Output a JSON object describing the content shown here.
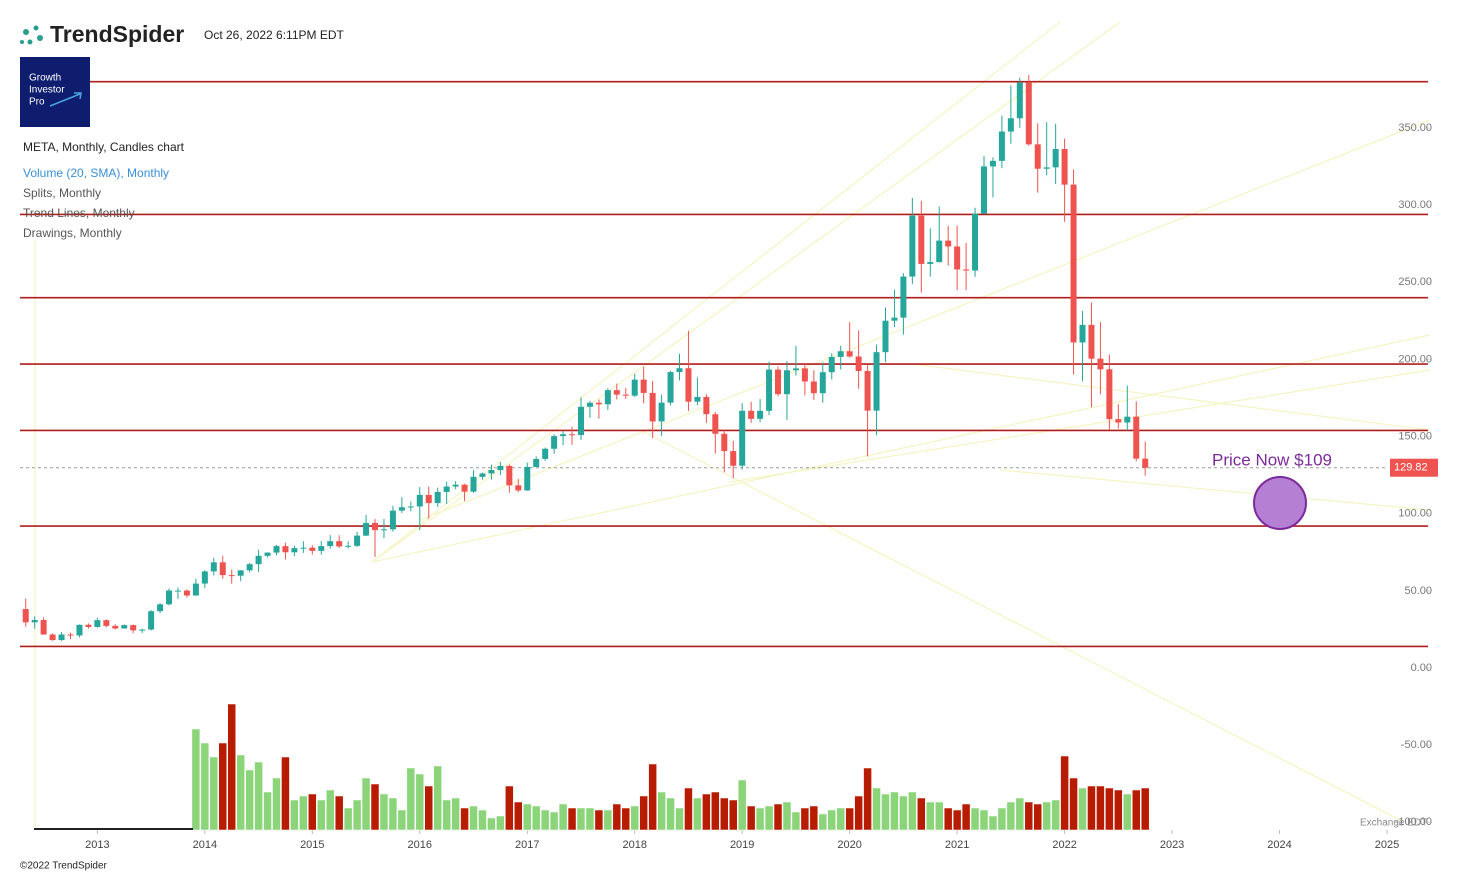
{
  "header": {
    "brand": "TrendSpider",
    "timestamp": "Oct 26, 2022 6:11PM EDT",
    "logo": [
      "Growth",
      "Investor",
      "Pro"
    ]
  },
  "footer": {
    "copyright": "©2022 TrendSpider",
    "exchange": "Exchange EDT"
  },
  "chart_data": {
    "type": "candlestick",
    "title": "META, Monthly, Candles chart",
    "indicators": [
      "Volume (20, SMA), Monthly",
      "Splits, Monthly",
      "Trend Lines, Monthly",
      "Drawings, Monthly"
    ],
    "up_color": "#26a69a",
    "down_color": "#ef5350",
    "volume_up_color": "#8cd47a",
    "volume_down_color": "#b81c00",
    "level_color": "#b01c1c",
    "x": [
      "2012-05",
      "2012-06",
      "2012-07",
      "2012-08",
      "2012-09",
      "2012-10",
      "2012-11",
      "2012-12",
      "2013-01",
      "2013-02",
      "2013-03",
      "2013-04",
      "2013-05",
      "2013-06",
      "2013-07",
      "2013-08",
      "2013-09",
      "2013-10",
      "2013-11",
      "2013-12",
      "2014-01",
      "2014-02",
      "2014-03",
      "2014-04",
      "2014-05",
      "2014-06",
      "2014-07",
      "2014-08",
      "2014-09",
      "2014-10",
      "2014-11",
      "2014-12",
      "2015-01",
      "2015-02",
      "2015-03",
      "2015-04",
      "2015-05",
      "2015-06",
      "2015-07",
      "2015-08",
      "2015-09",
      "2015-10",
      "2015-11",
      "2015-12",
      "2016-01",
      "2016-02",
      "2016-03",
      "2016-04",
      "2016-05",
      "2016-06",
      "2016-07",
      "2016-08",
      "2016-09",
      "2016-10",
      "2016-11",
      "2016-12",
      "2017-01",
      "2017-02",
      "2017-03",
      "2017-04",
      "2017-05",
      "2017-06",
      "2017-07",
      "2017-08",
      "2017-09",
      "2017-10",
      "2017-11",
      "2017-12",
      "2018-01",
      "2018-02",
      "2018-03",
      "2018-04",
      "2018-05",
      "2018-06",
      "2018-07",
      "2018-08",
      "2018-09",
      "2018-10",
      "2018-11",
      "2018-12",
      "2019-01",
      "2019-02",
      "2019-03",
      "2019-04",
      "2019-05",
      "2019-06",
      "2019-07",
      "2019-08",
      "2019-09",
      "2019-10",
      "2019-11",
      "2019-12",
      "2020-01",
      "2020-02",
      "2020-03",
      "2020-04",
      "2020-05",
      "2020-06",
      "2020-07",
      "2020-08",
      "2020-09",
      "2020-10",
      "2020-11",
      "2020-12",
      "2021-01",
      "2021-02",
      "2021-03",
      "2021-04",
      "2021-05",
      "2021-06",
      "2021-07",
      "2021-08",
      "2021-09",
      "2021-10",
      "2021-11",
      "2021-12",
      "2022-01",
      "2022-02",
      "2022-03",
      "2022-04",
      "2022-05",
      "2022-06",
      "2022-07",
      "2022-08",
      "2022-09",
      "2022-10"
    ],
    "ohlc": [
      [
        38.2,
        45,
        26.8,
        29.6
      ],
      [
        29.6,
        33.5,
        25.5,
        31.1
      ],
      [
        31.1,
        32.9,
        21.6,
        21.7
      ],
      [
        21.7,
        22.5,
        17.6,
        18.1
      ],
      [
        18.1,
        23.4,
        17.6,
        21.7
      ],
      [
        21.7,
        22.9,
        18.8,
        21.1
      ],
      [
        21.1,
        28.2,
        19.8,
        28.0
      ],
      [
        28.0,
        28.9,
        25.5,
        26.6
      ],
      [
        26.6,
        32.5,
        26.1,
        31.0
      ],
      [
        31.0,
        31.5,
        26.3,
        27.3
      ],
      [
        27.3,
        28.3,
        25.0,
        25.6
      ],
      [
        25.6,
        28.3,
        25.5,
        27.8
      ],
      [
        27.8,
        28.2,
        22.7,
        24.4
      ],
      [
        24.4,
        25.4,
        22.7,
        24.9
      ],
      [
        24.9,
        37.5,
        24.3,
        36.8
      ],
      [
        36.8,
        42.0,
        35.6,
        41.3
      ],
      [
        41.3,
        51.6,
        40.6,
        50.2
      ],
      [
        50.2,
        52.2,
        44.8,
        50.2
      ],
      [
        50.2,
        51.0,
        45.7,
        47.0
      ],
      [
        47.0,
        57.9,
        46.8,
        54.7
      ],
      [
        54.7,
        63.4,
        51.8,
        62.6
      ],
      [
        62.6,
        71.4,
        60.0,
        68.5
      ],
      [
        68.5,
        72.6,
        57.9,
        60.2
      ],
      [
        60.2,
        63.9,
        54.7,
        59.8
      ],
      [
        59.8,
        63.4,
        56.3,
        63.3
      ],
      [
        63.3,
        68.0,
        62.0,
        67.3
      ],
      [
        67.3,
        76.7,
        62.2,
        72.7
      ],
      [
        72.7,
        75.0,
        71.6,
        74.8
      ],
      [
        74.8,
        79.7,
        73.1,
        79.0
      ],
      [
        79.0,
        81.2,
        70.3,
        75.0
      ],
      [
        75.0,
        79.2,
        72.5,
        77.7
      ],
      [
        77.7,
        82.2,
        74.6,
        78.0
      ],
      [
        78.0,
        79.6,
        73.5,
        75.9
      ],
      [
        75.9,
        82.4,
        73.5,
        79.0
      ],
      [
        79.0,
        86.1,
        77.3,
        82.2
      ],
      [
        82.2,
        86.0,
        77.8,
        78.8
      ],
      [
        78.8,
        82.1,
        77.4,
        79.2
      ],
      [
        79.2,
        88.3,
        78.4,
        85.8
      ],
      [
        85.8,
        99.2,
        85.5,
        94.0
      ],
      [
        94.0,
        96.5,
        72.0,
        89.4
      ],
      [
        89.4,
        96.6,
        84.1,
        89.9
      ],
      [
        89.9,
        105.1,
        88.4,
        102.0
      ],
      [
        102.0,
        110.7,
        100.5,
        104.2
      ],
      [
        104.2,
        107.9,
        101.5,
        104.7
      ],
      [
        104.7,
        117.3,
        89.4,
        112.2
      ],
      [
        112.2,
        117.6,
        96.8,
        106.9
      ],
      [
        106.9,
        116.9,
        104.4,
        114.1
      ],
      [
        114.1,
        120.8,
        106.3,
        117.6
      ],
      [
        117.6,
        121.1,
        115.9,
        118.8
      ],
      [
        118.8,
        119.4,
        108.2,
        114.3
      ],
      [
        114.3,
        128.3,
        113.5,
        123.9
      ],
      [
        123.9,
        126.7,
        122.1,
        126.1
      ],
      [
        126.1,
        131.9,
        122.1,
        128.3
      ],
      [
        128.3,
        133.5,
        125.1,
        131.0
      ],
      [
        131.0,
        131.9,
        113.6,
        118.4
      ],
      [
        118.4,
        122.5,
        114.0,
        115.1
      ],
      [
        115.1,
        133.1,
        114.8,
        130.3
      ],
      [
        130.3,
        137.2,
        130.3,
        135.5
      ],
      [
        135.5,
        142.9,
        134.3,
        142.1
      ],
      [
        142.1,
        151.4,
        138.8,
        150.3
      ],
      [
        150.3,
        153.6,
        144.4,
        151.5
      ],
      [
        151.5,
        156.5,
        144.6,
        151.0
      ],
      [
        151.0,
        175.5,
        147.8,
        169.3
      ],
      [
        169.3,
        173.1,
        162.2,
        171.9
      ],
      [
        171.9,
        174.0,
        161.6,
        170.9
      ],
      [
        170.9,
        181.3,
        167.3,
        180.1
      ],
      [
        180.1,
        184.3,
        174.0,
        177.2
      ],
      [
        177.2,
        181.5,
        174.4,
        176.5
      ],
      [
        176.5,
        190.7,
        175.6,
        186.9
      ],
      [
        186.9,
        195.3,
        171.6,
        178.3
      ],
      [
        178.3,
        186.1,
        149.0,
        159.8
      ],
      [
        159.8,
        177.1,
        150.5,
        172.0
      ],
      [
        172.0,
        192.7,
        170.2,
        191.8
      ],
      [
        191.8,
        203.6,
        186.4,
        194.3
      ],
      [
        194.3,
        218.6,
        166.6,
        172.6
      ],
      [
        172.6,
        188.3,
        170.3,
        175.7
      ],
      [
        175.7,
        177.5,
        158.9,
        164.5
      ],
      [
        164.5,
        165.9,
        139.0,
        151.8
      ],
      [
        151.8,
        154.1,
        126.9,
        140.6
      ],
      [
        140.6,
        147.2,
        123.0,
        131.1
      ],
      [
        131.1,
        171.7,
        128.6,
        166.7
      ],
      [
        166.7,
        172.5,
        158.9,
        161.5
      ],
      [
        161.5,
        174.3,
        159.3,
        166.7
      ],
      [
        166.7,
        198.5,
        163.9,
        193.4
      ],
      [
        193.4,
        195.4,
        176.0,
        177.5
      ],
      [
        177.5,
        198.9,
        160.8,
        193.0
      ],
      [
        193.0,
        208.7,
        189.6,
        194.2
      ],
      [
        194.2,
        197.0,
        176.7,
        185.7
      ],
      [
        185.7,
        193.0,
        173.8,
        178.1
      ],
      [
        178.1,
        198.1,
        172.0,
        191.7
      ],
      [
        191.7,
        204.0,
        187.0,
        201.6
      ],
      [
        201.6,
        208.9,
        193.5,
        205.3
      ],
      [
        205.3,
        224.2,
        201.1,
        201.9
      ],
      [
        201.9,
        218.8,
        181.0,
        192.5
      ],
      [
        192.5,
        196.4,
        137.1,
        166.8
      ],
      [
        166.8,
        209.7,
        150.8,
        204.7
      ],
      [
        204.7,
        233.7,
        198.2,
        225.1
      ],
      [
        225.1,
        245.2,
        221.0,
        227.1
      ],
      [
        227.1,
        255.9,
        216.1,
        253.7
      ],
      [
        253.7,
        304.7,
        248.9,
        293.2
      ],
      [
        293.2,
        302.7,
        243.3,
        261.9
      ],
      [
        261.9,
        285.0,
        253.6,
        263.1
      ],
      [
        263.1,
        299.1,
        262.8,
        277.0
      ],
      [
        277.0,
        286.6,
        260.9,
        273.2
      ],
      [
        273.2,
        286.8,
        244.8,
        258.3
      ],
      [
        258.3,
        275.5,
        245.0,
        257.6
      ],
      [
        257.6,
        298.3,
        253.5,
        294.5
      ],
      [
        294.5,
        331.8,
        294.5,
        325.1
      ],
      [
        325.1,
        331.0,
        305.0,
        328.7
      ],
      [
        328.7,
        358.1,
        324.0,
        347.7
      ],
      [
        347.7,
        377.6,
        339.8,
        356.3
      ],
      [
        356.3,
        382.6,
        350.2,
        379.4
      ],
      [
        379.4,
        384.3,
        338.6,
        339.4
      ],
      [
        339.4,
        353.0,
        308.1,
        323.6
      ],
      [
        323.6,
        353.8,
        319.3,
        324.5
      ],
      [
        324.5,
        352.7,
        313.7,
        336.4
      ],
      [
        336.4,
        343.1,
        289.2,
        313.3
      ],
      [
        313.3,
        323.2,
        190.2,
        211.0
      ],
      [
        211.0,
        231.5,
        185.8,
        222.4
      ],
      [
        222.4,
        236.9,
        169.0,
        200.5
      ],
      [
        200.5,
        224.2,
        177.4,
        193.6
      ],
      [
        193.6,
        203.2,
        154.3,
        161.3
      ],
      [
        161.3,
        170.9,
        155.2,
        159.1
      ],
      [
        159.1,
        183.1,
        154.1,
        162.9
      ],
      [
        162.9,
        172.8,
        134.1,
        135.7
      ],
      [
        135.7,
        146.7,
        124.6,
        129.8
      ]
    ],
    "volume": [
      null,
      null,
      null,
      null,
      null,
      null,
      null,
      null,
      null,
      null,
      null,
      null,
      null,
      null,
      null,
      null,
      null,
      null,
      null,
      101,
      87,
      73,
      87,
      126,
      75,
      60,
      68,
      38,
      52,
      73,
      30,
      34,
      36,
      30,
      40,
      34,
      22,
      30,
      52,
      46,
      36,
      32,
      20,
      62,
      56,
      44,
      64,
      30,
      32,
      22,
      24,
      20,
      12,
      14,
      44,
      28,
      26,
      24,
      20,
      18,
      26,
      22,
      22,
      22,
      20,
      20,
      26,
      22,
      24,
      34,
      66,
      38,
      32,
      22,
      42,
      32,
      36,
      38,
      32,
      30,
      50,
      24,
      22,
      24,
      26,
      28,
      18,
      22,
      24,
      16,
      20,
      22,
      22,
      34,
      62,
      42,
      36,
      38,
      34,
      38,
      32,
      28,
      28,
      22,
      20,
      26,
      22,
      20,
      14,
      22,
      28,
      32,
      28,
      26,
      28,
      30,
      74,
      52,
      42,
      44,
      44,
      42,
      40,
      36,
      40,
      42
    ],
    "levels": [
      380,
      294,
      240,
      197,
      154,
      92,
      14
    ],
    "last_price": {
      "value": 129.82,
      "label": "129.82"
    },
    "annotation": "Price Now $109",
    "xlim": [
      2012.28,
      2025.4
    ],
    "xticks": [
      2013,
      2014,
      2015,
      2016,
      2017,
      2018,
      2019,
      2020,
      2021,
      2022,
      2023,
      2024,
      2025
    ],
    "ylim": [
      -105,
      420
    ],
    "yticks": [
      {
        "value": -100,
        "label": "-100.00"
      },
      {
        "value": -50,
        "label": "-50.00"
      },
      {
        "value": 0,
        "label": "0.00"
      },
      {
        "value": 50,
        "label": "50.00"
      },
      {
        "value": 100,
        "label": "100.00"
      },
      {
        "value": 150,
        "label": "150.00"
      },
      {
        "value": 200,
        "label": "200.00"
      },
      {
        "value": 250,
        "label": "250.00"
      },
      {
        "value": 300,
        "label": "300.00"
      },
      {
        "value": 350,
        "label": "350.00"
      }
    ]
  }
}
